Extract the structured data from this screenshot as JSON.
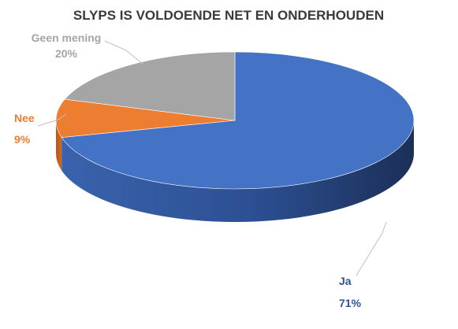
{
  "chart_data": {
    "type": "pie",
    "title": "SLYPS IS VOLDOENDE NET EN ONDERHOUDEN",
    "categories": [
      "Ja",
      "Nee",
      "Geen mening"
    ],
    "values": [
      71,
      9,
      20
    ],
    "value_labels": [
      "71%",
      "9%",
      "20%"
    ],
    "colors": [
      "#4472C4",
      "#ED7D31",
      "#A5A5A5"
    ],
    "label_colors": [
      "#2F5597",
      "#ED7D31",
      "#A5A5A5"
    ],
    "style": "3d-pie",
    "legend": "none"
  }
}
